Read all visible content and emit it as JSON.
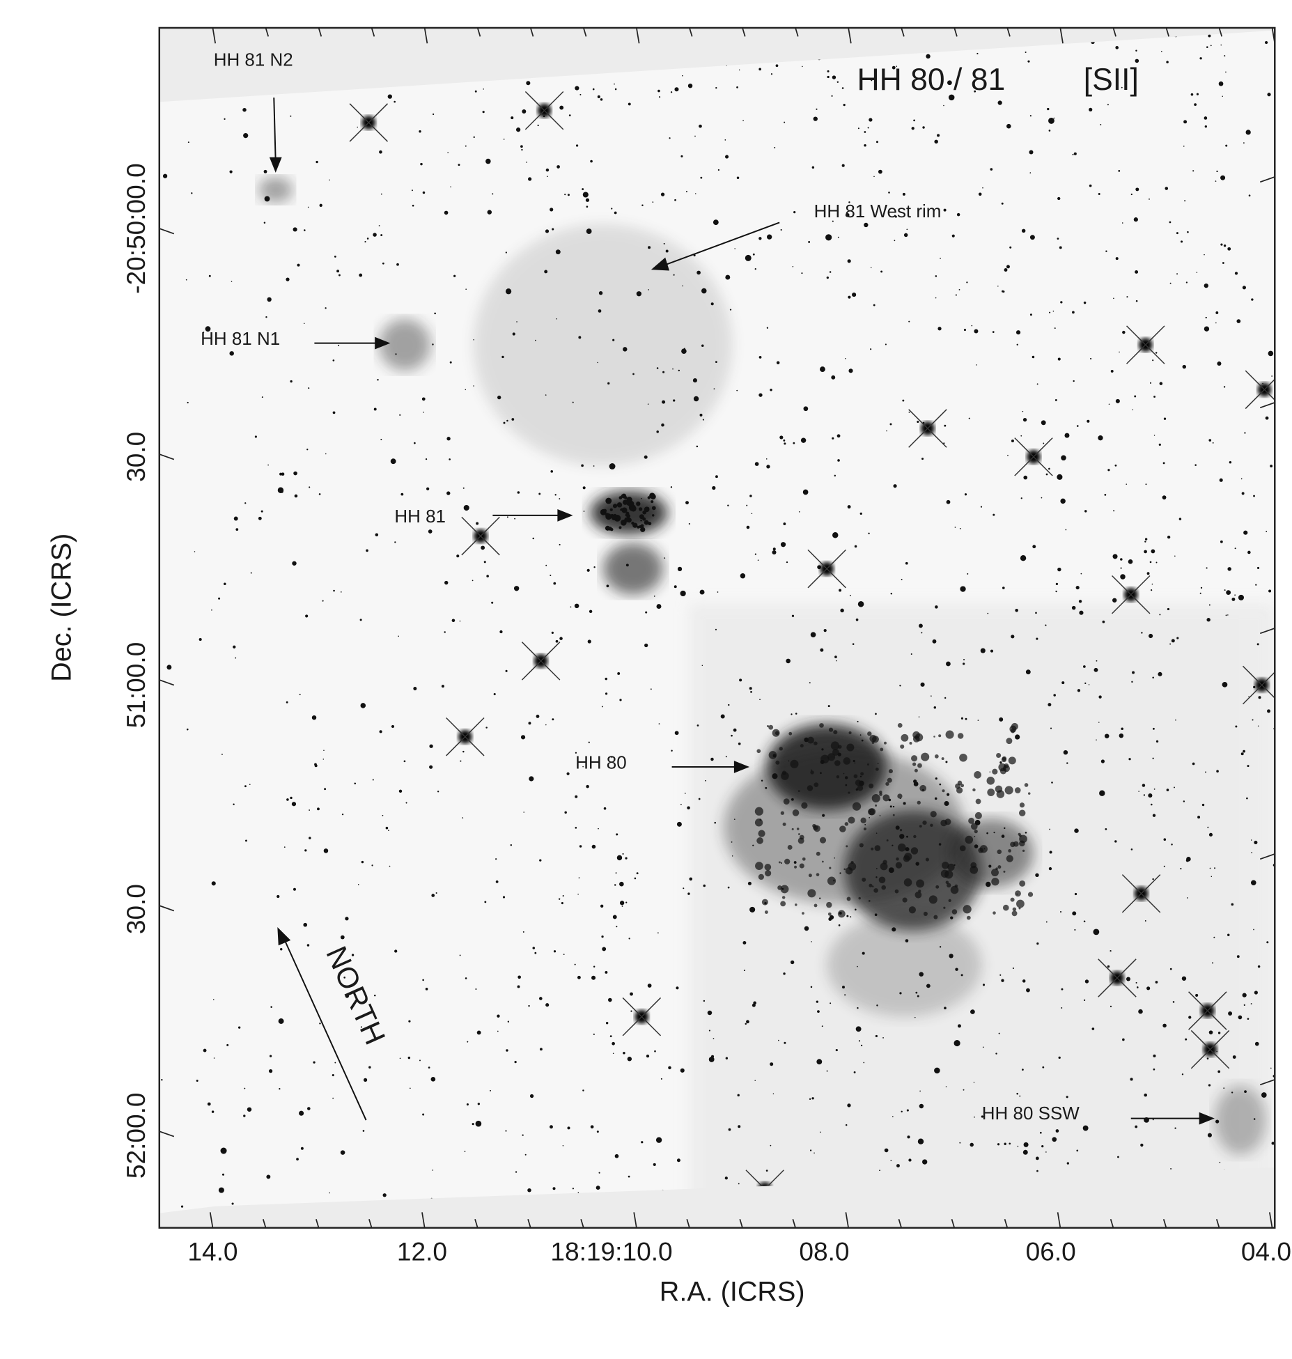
{
  "title": "HH 80 / 81",
  "filter": "[SII]",
  "x_axis": {
    "label": "R.A. (ICRS)",
    "ticks": [
      "14.0",
      "12.0",
      "18:19:10.0",
      "08.0",
      "06.0",
      "04.0"
    ]
  },
  "y_axis": {
    "label": "Dec. (ICRS)",
    "ticks": [
      "-20:50:00.0",
      "30.0",
      "51:00.0",
      "30.0",
      "52:00.0"
    ]
  },
  "annotations": {
    "n2": "HH 81 N2",
    "west_rim": "HH 81 West rim",
    "n1": "HH 81 N1",
    "hh81": "HH 81",
    "hh80": "HH 80",
    "ssw": "HH 80 SSW",
    "north": "NORTH"
  },
  "colors": {
    "background": "#f4f4f4",
    "stars": "#111111",
    "mask": "#ececec"
  }
}
